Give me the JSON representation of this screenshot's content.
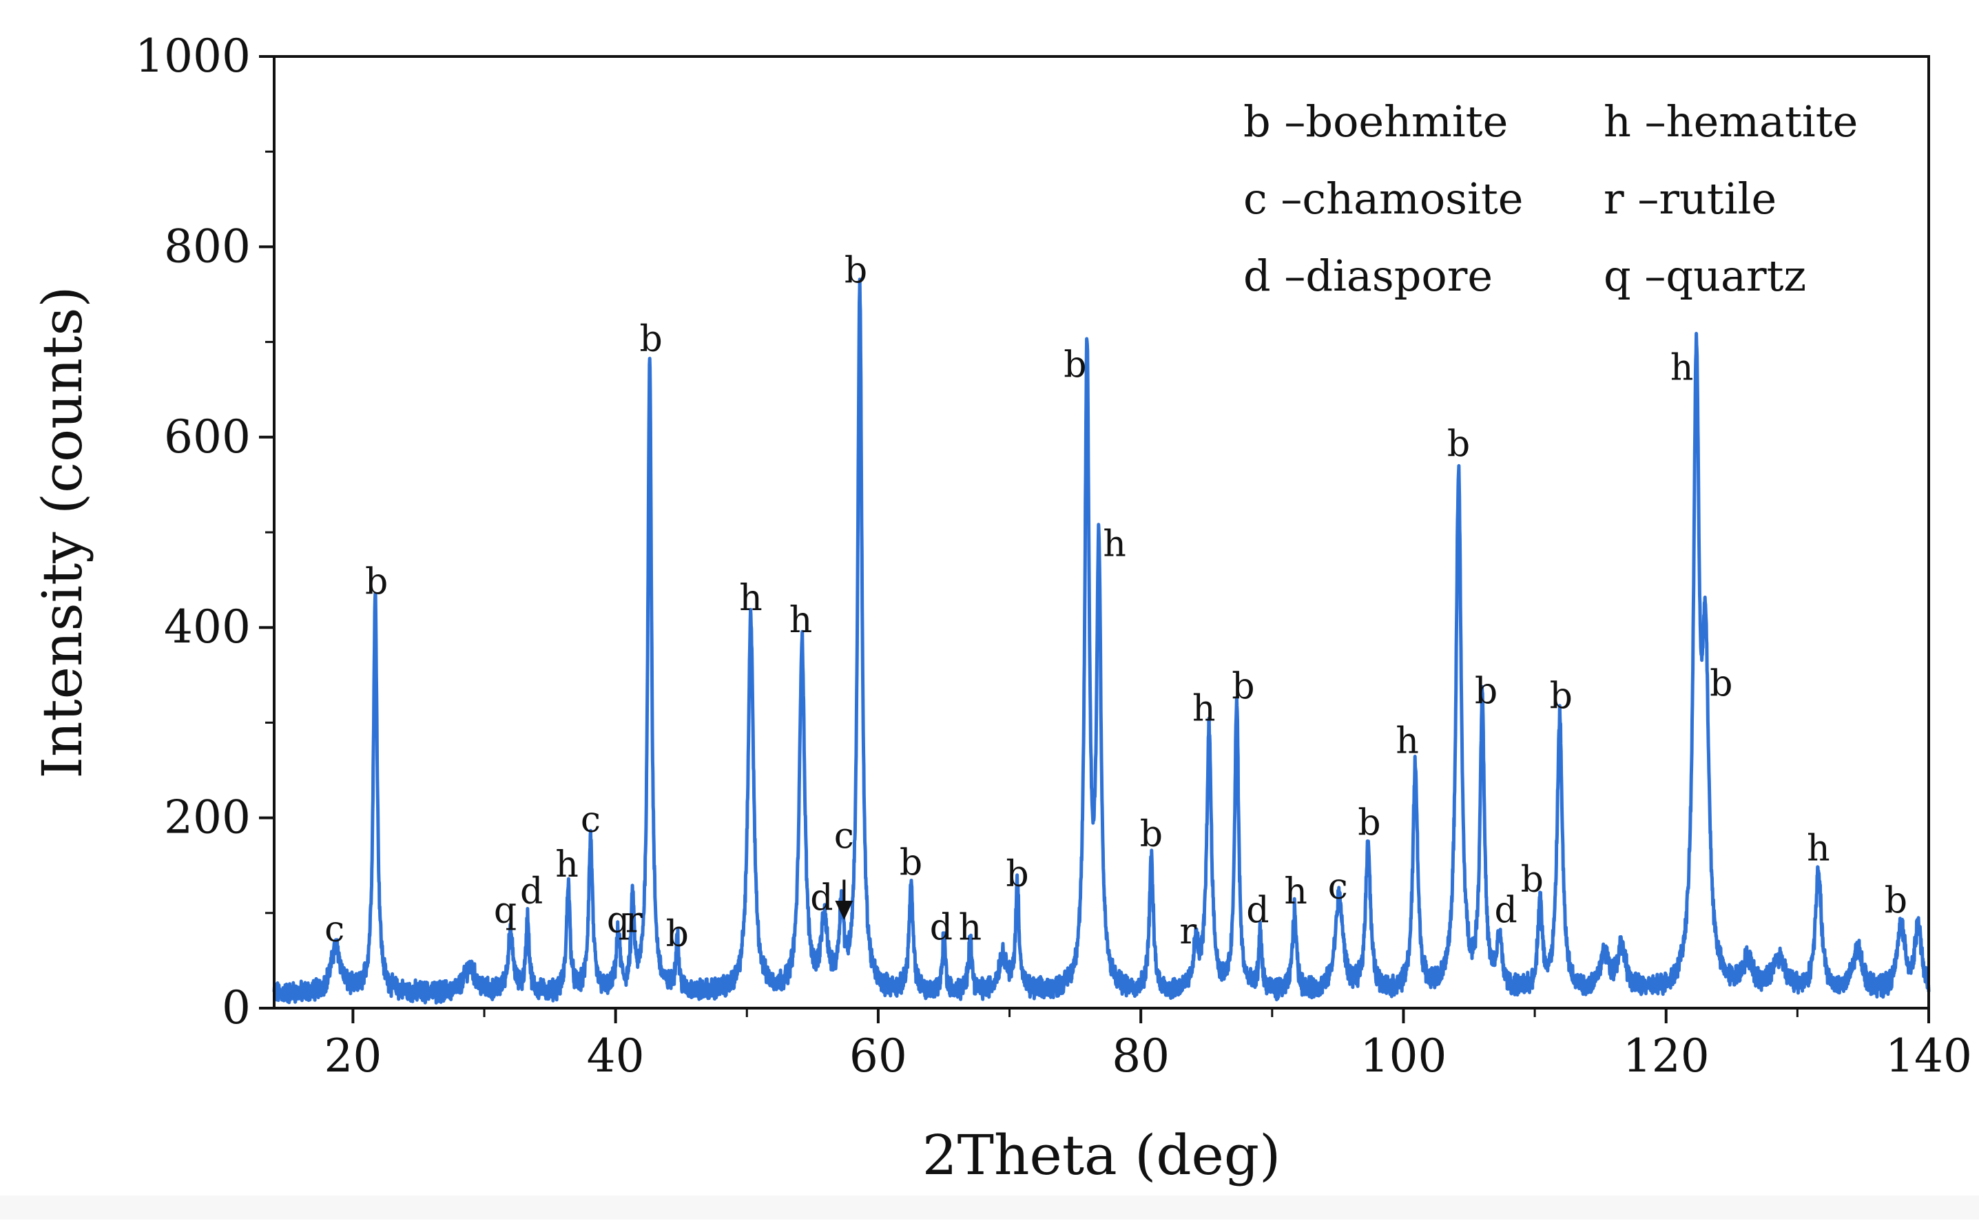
{
  "chart_data": {
    "type": "line",
    "title": "",
    "xlabel": "2Theta (deg)",
    "ylabel": "Intensity (counts)",
    "xlim": [
      14,
      140
    ],
    "ylim": [
      0,
      1000
    ],
    "xticks": [
      20,
      40,
      60,
      80,
      100,
      120,
      140
    ],
    "xtick_labels": [
      "20",
      "40",
      "60",
      "80",
      "100",
      "120",
      "140"
    ],
    "yticks": [
      0,
      200,
      400,
      600,
      800,
      1000
    ],
    "ytick_labels": [
      "0",
      "200",
      "400",
      "600",
      "800",
      "1000"
    ],
    "grid": false,
    "line_color": "#2f72d6",
    "baseline": 15,
    "peaks": [
      {
        "x": 18.7,
        "y": 48,
        "w": 0.45,
        "label": "c"
      },
      {
        "x": 21.7,
        "y": 415,
        "w": 0.18,
        "label": "b"
      },
      {
        "x": 28.9,
        "y": 28,
        "w": 0.5,
        "label": ""
      },
      {
        "x": 32.0,
        "y": 60,
        "w": 0.25,
        "label": "q"
      },
      {
        "x": 33.3,
        "y": 78,
        "w": 0.15,
        "label": "d"
      },
      {
        "x": 36.4,
        "y": 115,
        "w": 0.16,
        "label": "h"
      },
      {
        "x": 38.1,
        "y": 162,
        "w": 0.18,
        "label": "c"
      },
      {
        "x": 40.2,
        "y": 60,
        "w": 0.18,
        "label": "q"
      },
      {
        "x": 41.3,
        "y": 95,
        "w": 0.14,
        "label": "r"
      },
      {
        "x": 42.6,
        "y": 670,
        "w": 0.17,
        "label": "b"
      },
      {
        "x": 44.7,
        "y": 55,
        "w": 0.14,
        "label": "b"
      },
      {
        "x": 50.3,
        "y": 395,
        "w": 0.25,
        "label": "h"
      },
      {
        "x": 54.2,
        "y": 370,
        "w": 0.24,
        "label": "h"
      },
      {
        "x": 55.9,
        "y": 70,
        "w": 0.3,
        "label": "d"
      },
      {
        "x": 57.2,
        "y": 85,
        "w": 0.2,
        "label": "c"
      },
      {
        "x": 58.6,
        "y": 740,
        "w": 0.2,
        "label": "b"
      },
      {
        "x": 62.5,
        "y": 112,
        "w": 0.18,
        "label": "b"
      },
      {
        "x": 65.0,
        "y": 60,
        "w": 0.14,
        "label": "d"
      },
      {
        "x": 67.0,
        "y": 62,
        "w": 0.14,
        "label": "h"
      },
      {
        "x": 69.5,
        "y": 38,
        "w": 0.4,
        "label": ""
      },
      {
        "x": 70.6,
        "y": 112,
        "w": 0.16,
        "label": "b"
      },
      {
        "x": 75.9,
        "y": 670,
        "w": 0.2,
        "label": "b"
      },
      {
        "x": 76.8,
        "y": 460,
        "w": 0.2,
        "label": "h"
      },
      {
        "x": 80.8,
        "y": 140,
        "w": 0.18,
        "label": "b"
      },
      {
        "x": 84.2,
        "y": 45,
        "w": 0.25,
        "label": "r"
      },
      {
        "x": 85.2,
        "y": 275,
        "w": 0.22,
        "label": "h"
      },
      {
        "x": 87.3,
        "y": 305,
        "w": 0.18,
        "label": "b"
      },
      {
        "x": 89.1,
        "y": 62,
        "w": 0.14,
        "label": "d"
      },
      {
        "x": 91.7,
        "y": 85,
        "w": 0.18,
        "label": "h"
      },
      {
        "x": 95.1,
        "y": 100,
        "w": 0.35,
        "label": "c"
      },
      {
        "x": 97.3,
        "y": 158,
        "w": 0.22,
        "label": "b"
      },
      {
        "x": 100.9,
        "y": 238,
        "w": 0.22,
        "label": "h"
      },
      {
        "x": 104.2,
        "y": 545,
        "w": 0.24,
        "label": "b"
      },
      {
        "x": 106.0,
        "y": 305,
        "w": 0.2,
        "label": "b"
      },
      {
        "x": 107.3,
        "y": 55,
        "w": 0.22,
        "label": "d"
      },
      {
        "x": 110.4,
        "y": 92,
        "w": 0.2,
        "label": "b"
      },
      {
        "x": 111.9,
        "y": 288,
        "w": 0.24,
        "label": "b"
      },
      {
        "x": 115.3,
        "y": 38,
        "w": 0.4,
        "label": ""
      },
      {
        "x": 116.6,
        "y": 45,
        "w": 0.4,
        "label": ""
      },
      {
        "x": 122.3,
        "y": 635,
        "w": 0.26,
        "label": "h"
      },
      {
        "x": 123.0,
        "y": 330,
        "w": 0.3,
        "label": "b"
      },
      {
        "x": 126.2,
        "y": 30,
        "w": 0.5,
        "label": ""
      },
      {
        "x": 128.6,
        "y": 35,
        "w": 0.6,
        "label": ""
      },
      {
        "x": 131.6,
        "y": 125,
        "w": 0.28,
        "label": "h"
      },
      {
        "x": 134.6,
        "y": 45,
        "w": 0.45,
        "label": ""
      },
      {
        "x": 137.9,
        "y": 70,
        "w": 0.35,
        "label": "b"
      },
      {
        "x": 139.2,
        "y": 68,
        "w": 0.3,
        "label": ""
      }
    ],
    "peak_annotations": [
      {
        "text": "c",
        "x": 18.6,
        "y": 60
      },
      {
        "text": "b",
        "x": 21.8,
        "y": 425
      },
      {
        "text": "q",
        "x": 31.6,
        "y": 80
      },
      {
        "text": "d",
        "x": 33.6,
        "y": 100
      },
      {
        "text": "h",
        "x": 36.3,
        "y": 128
      },
      {
        "text": "c",
        "x": 38.1,
        "y": 175
      },
      {
        "text": "q",
        "x": 40.2,
        "y": 70
      },
      {
        "text": "r",
        "x": 41.4,
        "y": 70
      },
      {
        "text": "b",
        "x": 44.7,
        "y": 55
      },
      {
        "text": "b",
        "x": 42.7,
        "y": 680
      },
      {
        "text": "h",
        "x": 50.3,
        "y": 408
      },
      {
        "text": "h",
        "x": 54.1,
        "y": 385
      },
      {
        "text": "d",
        "x": 55.7,
        "y": 93
      },
      {
        "text": "c",
        "x": 57.4,
        "y": 158
      },
      {
        "text": "b",
        "x": 58.3,
        "y": 752
      },
      {
        "text": "b",
        "x": 62.5,
        "y": 130
      },
      {
        "text": "d",
        "x": 64.8,
        "y": 62
      },
      {
        "text": "h",
        "x": 67.0,
        "y": 62
      },
      {
        "text": "b",
        "x": 70.6,
        "y": 118
      },
      {
        "text": "b",
        "x": 75.0,
        "y": 653
      },
      {
        "text": "h",
        "x": 78.0,
        "y": 465
      },
      {
        "text": "b",
        "x": 80.8,
        "y": 160
      },
      {
        "text": "r",
        "x": 83.6,
        "y": 58
      },
      {
        "text": "h",
        "x": 84.8,
        "y": 292
      },
      {
        "text": "b",
        "x": 87.8,
        "y": 315
      },
      {
        "text": "d",
        "x": 88.9,
        "y": 80
      },
      {
        "text": "h",
        "x": 91.8,
        "y": 100
      },
      {
        "text": "c",
        "x": 95.0,
        "y": 105
      },
      {
        "text": "b",
        "x": 97.4,
        "y": 172
      },
      {
        "text": "h",
        "x": 100.3,
        "y": 258
      },
      {
        "text": "b",
        "x": 104.2,
        "y": 570
      },
      {
        "text": "b",
        "x": 106.3,
        "y": 310
      },
      {
        "text": "d",
        "x": 107.8,
        "y": 80
      },
      {
        "text": "b",
        "x": 109.8,
        "y": 112
      },
      {
        "text": "b",
        "x": 112.0,
        "y": 305
      },
      {
        "text": "h",
        "x": 121.2,
        "y": 650
      },
      {
        "text": "b",
        "x": 124.2,
        "y": 318
      },
      {
        "text": "h",
        "x": 131.6,
        "y": 145
      },
      {
        "text": "b",
        "x": 137.5,
        "y": 90
      }
    ],
    "arrow": {
      "x": 57.4,
      "y_from": 135,
      "y_to": 97
    },
    "legend": {
      "position": "top-right",
      "entries": [
        {
          "key": "b",
          "name": "boehmite"
        },
        {
          "key": "h",
          "name": "hematite"
        },
        {
          "key": "c",
          "name": "chamosite"
        },
        {
          "key": "r",
          "name": "rutile"
        },
        {
          "key": "d",
          "name": "diaspore"
        },
        {
          "key": "q",
          "name": "quartz"
        }
      ]
    }
  }
}
